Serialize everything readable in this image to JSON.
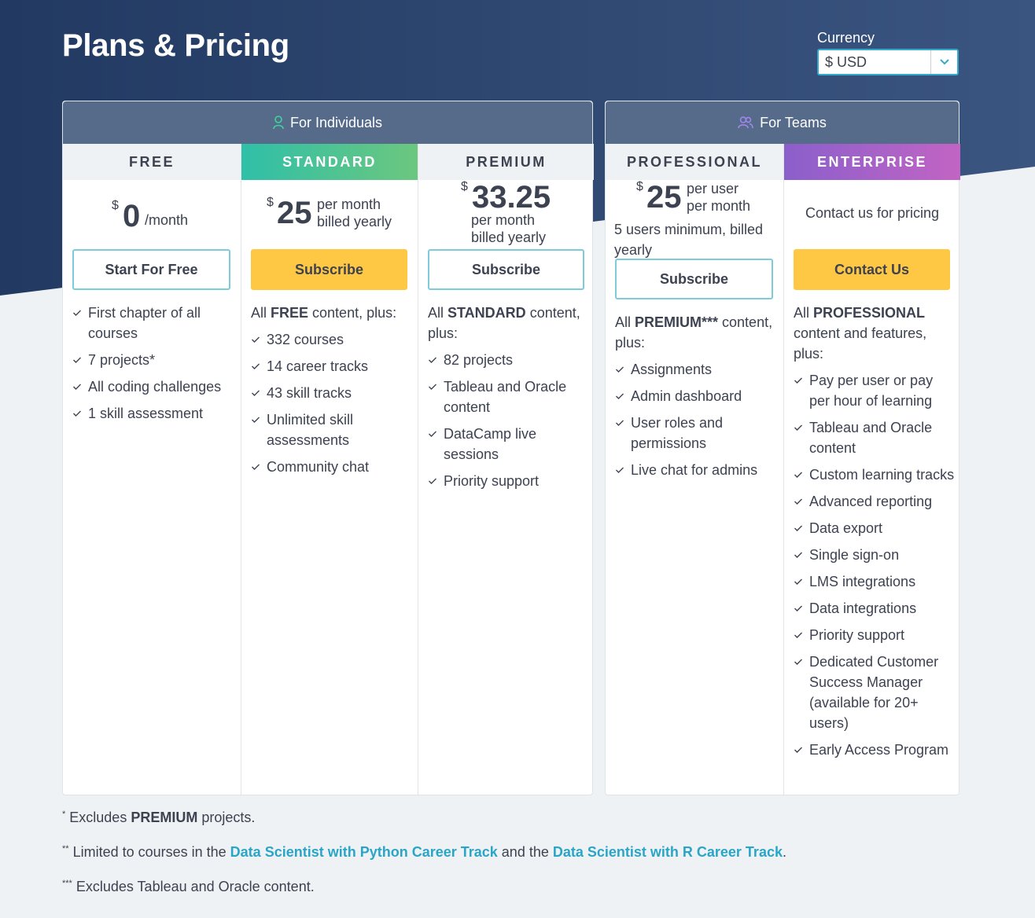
{
  "page": {
    "title": "Plans & Pricing"
  },
  "currency": {
    "label": "Currency",
    "selected": "$ USD"
  },
  "groups": {
    "individuals": {
      "label": "For Individuals",
      "icon": "user-icon"
    },
    "teams": {
      "label": "For Teams",
      "icon": "users-icon"
    }
  },
  "plans": {
    "free": {
      "name": "FREE",
      "currency_symbol": "$",
      "price": "0",
      "period": "/month",
      "button": "Start For Free",
      "features": [
        "First chapter of all courses",
        "7 projects*",
        "All coding challenges",
        "1 skill assessment"
      ]
    },
    "standard": {
      "name": "STANDARD",
      "currency_symbol": "$",
      "price": "25",
      "period_line1": "per month",
      "period_line2": "billed yearly",
      "button": "Subscribe",
      "intro_pre": "All ",
      "intro_bold": "FREE",
      "intro_post": " content, plus:",
      "features": [
        "332 courses",
        "14 career tracks",
        "43 skill tracks",
        "Unlimited skill assessments",
        "Community chat"
      ]
    },
    "premium": {
      "name": "PREMIUM",
      "currency_symbol": "$",
      "price": "33.25",
      "period_line1": "per month",
      "period_line2": "billed yearly",
      "button": "Subscribe",
      "intro_pre": "All ",
      "intro_bold": "STANDARD",
      "intro_post": " content, plus:",
      "features": [
        "82 projects",
        "Tableau and Oracle content",
        "DataCamp live sessions",
        "Priority support"
      ]
    },
    "professional": {
      "name": "PROFESSIONAL",
      "currency_symbol": "$",
      "price": "25",
      "period_line1": "per user",
      "period_line2": "per month",
      "note": "5 users minimum, billed yearly",
      "button": "Subscribe",
      "intro_pre": "All ",
      "intro_bold": "PREMIUM***",
      "intro_post": " content, plus:",
      "features": [
        "Assignments",
        "Admin dashboard",
        "User roles and permissions",
        "Live chat for admins"
      ]
    },
    "enterprise": {
      "name": "ENTERPRISE",
      "contact_text": "Contact us for pricing",
      "button": "Contact Us",
      "intro_pre": "All ",
      "intro_bold": "PROFESSIONAL",
      "intro_post": " content and features, plus:",
      "features": [
        "Pay per user or pay per hour of learning",
        "Tableau and Oracle content",
        "Custom learning tracks",
        "Advanced reporting",
        "Data export",
        "Single sign-on",
        "LMS integrations",
        "Data integrations",
        "Priority support",
        "Dedicated Customer Success Manager (available for 20+ users)",
        "Early Access Program"
      ]
    }
  },
  "footnotes": {
    "f1": {
      "mark": "*",
      "pre": " Excludes ",
      "bold": "PREMIUM",
      "post": " projects."
    },
    "f2": {
      "mark": "**",
      "pre": " Limited to courses in the ",
      "link1": "Data Scientist with Python Career Track",
      "mid": " and the ",
      "link2": "Data Scientist with R Career Track",
      "post": "."
    },
    "f3": {
      "mark": "***",
      "text": " Excludes Tableau and Oracle content."
    }
  },
  "colors": {
    "header_bg": "#2b4168",
    "group_header": "#566a8a",
    "accent_link": "#2aa5c7",
    "button_yellow": "#ffc844",
    "button_outline": "#7ecbd9",
    "standard_gradient": [
      "#2fbfa8",
      "#6cc77f"
    ],
    "enterprise_gradient": [
      "#8b5fcb",
      "#c264c4"
    ]
  }
}
